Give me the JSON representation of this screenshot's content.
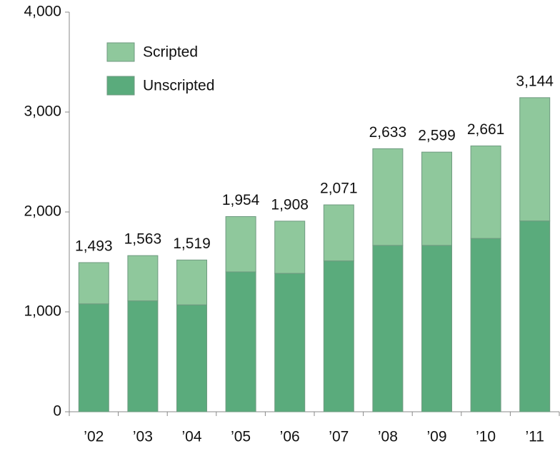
{
  "chart_data": {
    "type": "stacked_bar",
    "categories": [
      "’02",
      "’03",
      "’04",
      "’05",
      "’06",
      "’07",
      "’08",
      "’09",
      "’10",
      "’11"
    ],
    "series": [
      {
        "name": "Unscripted",
        "color": "#5aab7c",
        "values": [
          1080,
          1110,
          1070,
          1400,
          1385,
          1510,
          1665,
          1665,
          1735,
          1910
        ]
      },
      {
        "name": "Scripted",
        "color": "#8fc89c",
        "values": [
          413,
          453,
          449,
          554,
          523,
          561,
          968,
          934,
          926,
          1234
        ]
      }
    ],
    "totals": {
      "values": [
        1493,
        1563,
        1519,
        1954,
        1908,
        2071,
        2633,
        2599,
        2661,
        3144
      ],
      "value_labels": [
        "1,493",
        "1,563",
        "1,519",
        "1,954",
        "1,908",
        "2,071",
        "2,633",
        "2,599",
        "2,661",
        "3,144"
      ]
    },
    "ylim": [
      0,
      4000
    ],
    "yticks": [
      0,
      {
        "value": 1000,
        "label": "1,000"
      },
      {
        "value": 2000,
        "label": "2,000"
      },
      {
        "value": 3000,
        "label": "3,000"
      },
      {
        "value": 4000,
        "label": "4,000"
      }
    ],
    "legend": "top-left"
  }
}
